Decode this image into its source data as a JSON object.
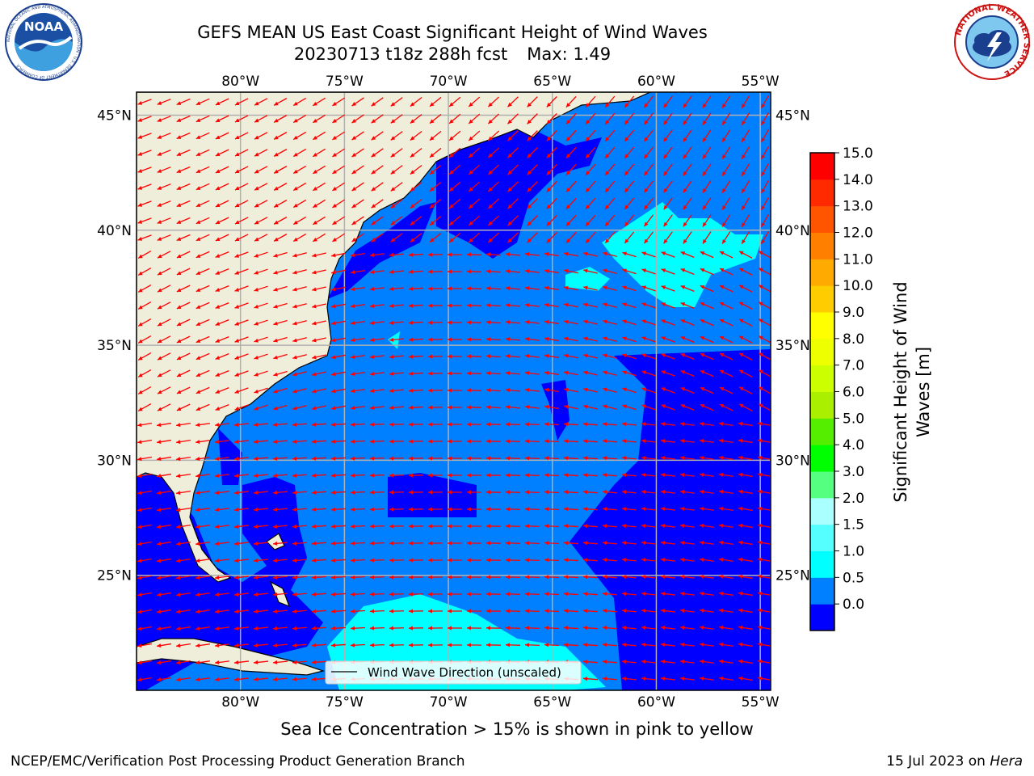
{
  "title": {
    "line1": "GEFS MEAN US East Coast Significant Height of Wind Waves",
    "line2_left": "20230713 t18z 288h fcst",
    "line2_right": "Max: 1.49"
  },
  "logos": {
    "left": {
      "icon": "noaa-logo-icon",
      "text": "NOAA",
      "ring_text": "NATIONAL OCEANIC AND ATMOSPHERIC ADMINISTRATION · U.S. DEPARTMENT OF COMMERCE"
    },
    "right": {
      "icon": "nws-logo-icon",
      "ring_text": "NATIONAL WEATHER SERVICE"
    }
  },
  "map": {
    "lon_labels": [
      "80°W",
      "75°W",
      "70°W",
      "65°W",
      "60°W",
      "55°W"
    ],
    "lat_labels": [
      "45°N",
      "40°N",
      "35°N",
      "30°N",
      "25°N"
    ],
    "lon_range": [
      -85,
      -54.5
    ],
    "lat_range": [
      20,
      46
    ],
    "lon_ticks": [
      -80,
      -75,
      -70,
      -65,
      -60,
      -55
    ],
    "lat_ticks": [
      45,
      40,
      35,
      30,
      25
    ],
    "grid": true,
    "colors": {
      "land": "#efeedb",
      "coast": "#000000",
      "grid": "#b0b0b0",
      "arrow": "#ff0000"
    },
    "legend_label": "Wind Wave Direction (unscaled)"
  },
  "colorbar": {
    "label_line1": "Significant Height of Wind",
    "label_line2": "Waves [m]",
    "ticks": [
      "15.0",
      "14.0",
      "13.0",
      "12.0",
      "11.0",
      "10.0",
      "9.0",
      "8.0",
      "7.0",
      "6.0",
      "5.0",
      "4.0",
      "3.0",
      "2.0",
      "1.5",
      "1.0",
      "0.5",
      "0.0"
    ],
    "bounds": [
      0,
      0.5,
      1.0,
      1.5,
      2.0,
      3.0,
      4.0,
      5.0,
      6.0,
      7.0,
      8.0,
      9.0,
      10.0,
      11.0,
      12.0,
      13.0,
      14.0,
      15.0
    ],
    "colors": [
      "#0000ff",
      "#0080ff",
      "#00ffff",
      "#55ffff",
      "#aaffff",
      "#55ff7f",
      "#00ff00",
      "#55ee00",
      "#aaee00",
      "#ccff00",
      "#eeff00",
      "#ffff00",
      "#ffcc00",
      "#ffaa00",
      "#ff7f00",
      "#ff5500",
      "#ff2a00",
      "#ff0000"
    ]
  },
  "caption": "Sea Ice Concentration > 15% is shown in pink to yellow",
  "footer": {
    "left": "NCEP/EMC/Verification Post Processing Product Generation Branch",
    "right_prefix": "15 Jul 2023 on ",
    "right_host": "Hera"
  }
}
